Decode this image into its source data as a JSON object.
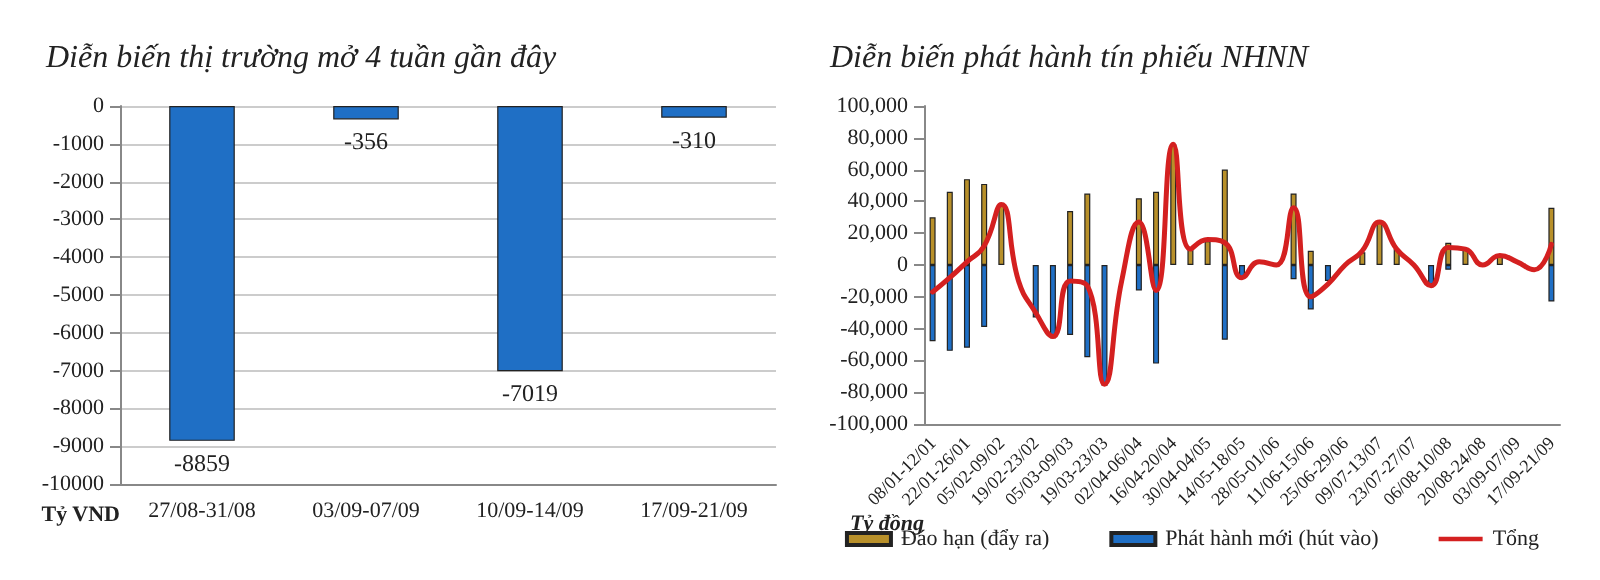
{
  "chart_data": [
    {
      "type": "bar",
      "title": "Diễn biến thị trường mở 4 tuần gần đây",
      "ylabel": "Tỷ VND",
      "categories": [
        "27/08-31/08",
        "03/09-07/09",
        "10/09-14/09",
        "17/09-21/09"
      ],
      "values": [
        -8859,
        -356,
        -7019,
        -310
      ],
      "color": "#1f6fc5",
      "data_labels": true,
      "ylim": [
        -10000,
        0
      ],
      "yticks": [
        -10000,
        -9000,
        -8000,
        -7000,
        -6000,
        -5000,
        -4000,
        -3000,
        -2000,
        -1000,
        0
      ],
      "grid": "y",
      "legend": false
    },
    {
      "type": "bar",
      "title": "Diễn biến phát hành tín phiếu NHNN",
      "ylabel": "Tỷ đồng",
      "categories": [
        "08/01-12/01",
        null,
        "22/01-26/01",
        null,
        "05/02-09/02",
        null,
        "19/02-23/02",
        null,
        "05/03-09/03",
        null,
        "19/03-23/03",
        null,
        "02/04-06/04",
        null,
        "16/04-20/04",
        null,
        "30/04-04/05",
        null,
        "14/05-18/05",
        null,
        "28/05-01/06",
        null,
        "11/06-15/06",
        null,
        "25/06-29/06",
        null,
        "09/07-13/07",
        null,
        "23/07-27/07",
        null,
        "06/08-10/08",
        null,
        "20/08-24/08",
        null,
        "03/09-07/09",
        null,
        "17/09-21/09"
      ],
      "stacked": true,
      "series": [
        {
          "name": "Đáo hạn (đẩy ra)",
          "color": "#b8902a",
          "values": [
            30000,
            46000,
            54000,
            51000,
            38000,
            null,
            null,
            null,
            34000,
            45000,
            null,
            null,
            42000,
            46000,
            76000,
            10000,
            15000,
            60000,
            null,
            null,
            null,
            45000,
            9000,
            null,
            null,
            8000,
            27000,
            10000,
            null,
            null,
            14000,
            10000,
            null,
            6000,
            null,
            null,
            36000
          ]
        },
        {
          "name": "Phát hành mới (hút vào)",
          "color": "#1f6fc5",
          "values": [
            -48000,
            -54000,
            -52000,
            -39000,
            null,
            null,
            -33000,
            -46000,
            -44000,
            -58000,
            -76000,
            null,
            -16000,
            -62000,
            null,
            null,
            null,
            -47000,
            -8000,
            null,
            null,
            -9000,
            -28000,
            -10000,
            null,
            null,
            null,
            null,
            null,
            -12000,
            -3000,
            null,
            null,
            null,
            null,
            null,
            -23000
          ]
        },
        {
          "name": "Tổng",
          "type": "line",
          "color": "#d42020",
          "values": [
            -17000,
            -8000,
            2000,
            12000,
            38000,
            -10000,
            -30000,
            -45000,
            -10000,
            -13000,
            -75000,
            -10000,
            27000,
            -16000,
            76000,
            10000,
            16000,
            14000,
            -8000,
            2000,
            0,
            36000,
            -20000,
            -12000,
            0,
            9000,
            27000,
            10000,
            0,
            -13000,
            11000,
            10000,
            0,
            6000,
            2000,
            -3000,
            13000
          ]
        }
      ],
      "ylim": [
        -100000,
        100000
      ],
      "yticks": [
        {
          "value": -100000,
          "label": "-100,000"
        },
        {
          "value": -80000,
          "label": "-80,000"
        },
        {
          "value": -60000,
          "label": "-60,000"
        },
        {
          "value": -40000,
          "label": "-40,000"
        },
        {
          "value": -20000,
          "label": "-20,000"
        },
        0,
        {
          "value": 20000,
          "label": "20,000"
        },
        {
          "value": 40000,
          "label": "40,000"
        },
        {
          "value": 60000,
          "label": "60,000"
        },
        {
          "value": 80000,
          "label": "80,000"
        },
        {
          "value": 100000,
          "label": "100,000"
        }
      ],
      "legend": "bottom",
      "marker": "none",
      "line_style": "solid"
    }
  ]
}
